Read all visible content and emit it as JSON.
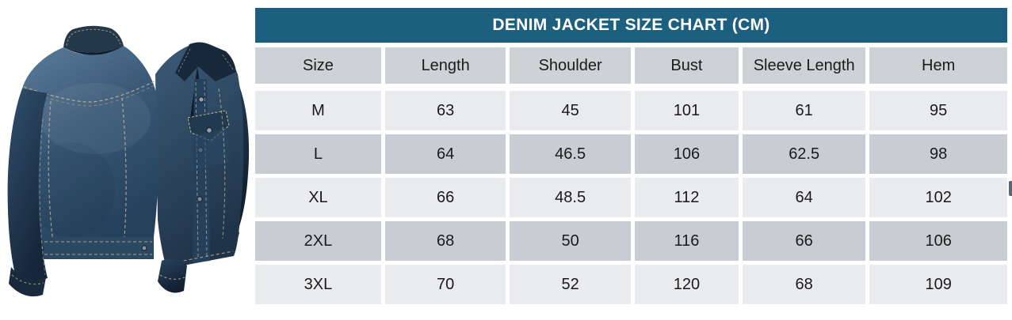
{
  "product_image": {
    "alt": "Denim jacket shown from the back (large) and front (smaller, behind)"
  },
  "chart_data": {
    "type": "table",
    "title": "DENIM JACKET SIZE CHART (CM)",
    "units": "cm",
    "columns": [
      "Size",
      "Length",
      "Shoulder",
      "Bust",
      "Sleeve Length",
      "Hem"
    ],
    "rows": [
      [
        "M",
        "63",
        "45",
        "101",
        "61",
        "95"
      ],
      [
        "L",
        "64",
        "46.5",
        "106",
        "62.5",
        "98"
      ],
      [
        "XL",
        "66",
        "48.5",
        "112",
        "64",
        "102"
      ],
      [
        "2XL",
        "68",
        "50",
        "116",
        "66",
        "106"
      ],
      [
        "3XL",
        "70",
        "52",
        "120",
        "68",
        "109"
      ]
    ]
  },
  "colors": {
    "header_bg": "#1d5f7e",
    "header_text": "#ffffff",
    "col_header_bg": "#ced2d7",
    "row_light": "#e9ebee",
    "row_dark": "#c9cdd3",
    "cell_text": "#1a1a1a",
    "denim_mid": "#35536f",
    "denim_dark": "#1c2e40",
    "stitch": "#c8b795"
  }
}
